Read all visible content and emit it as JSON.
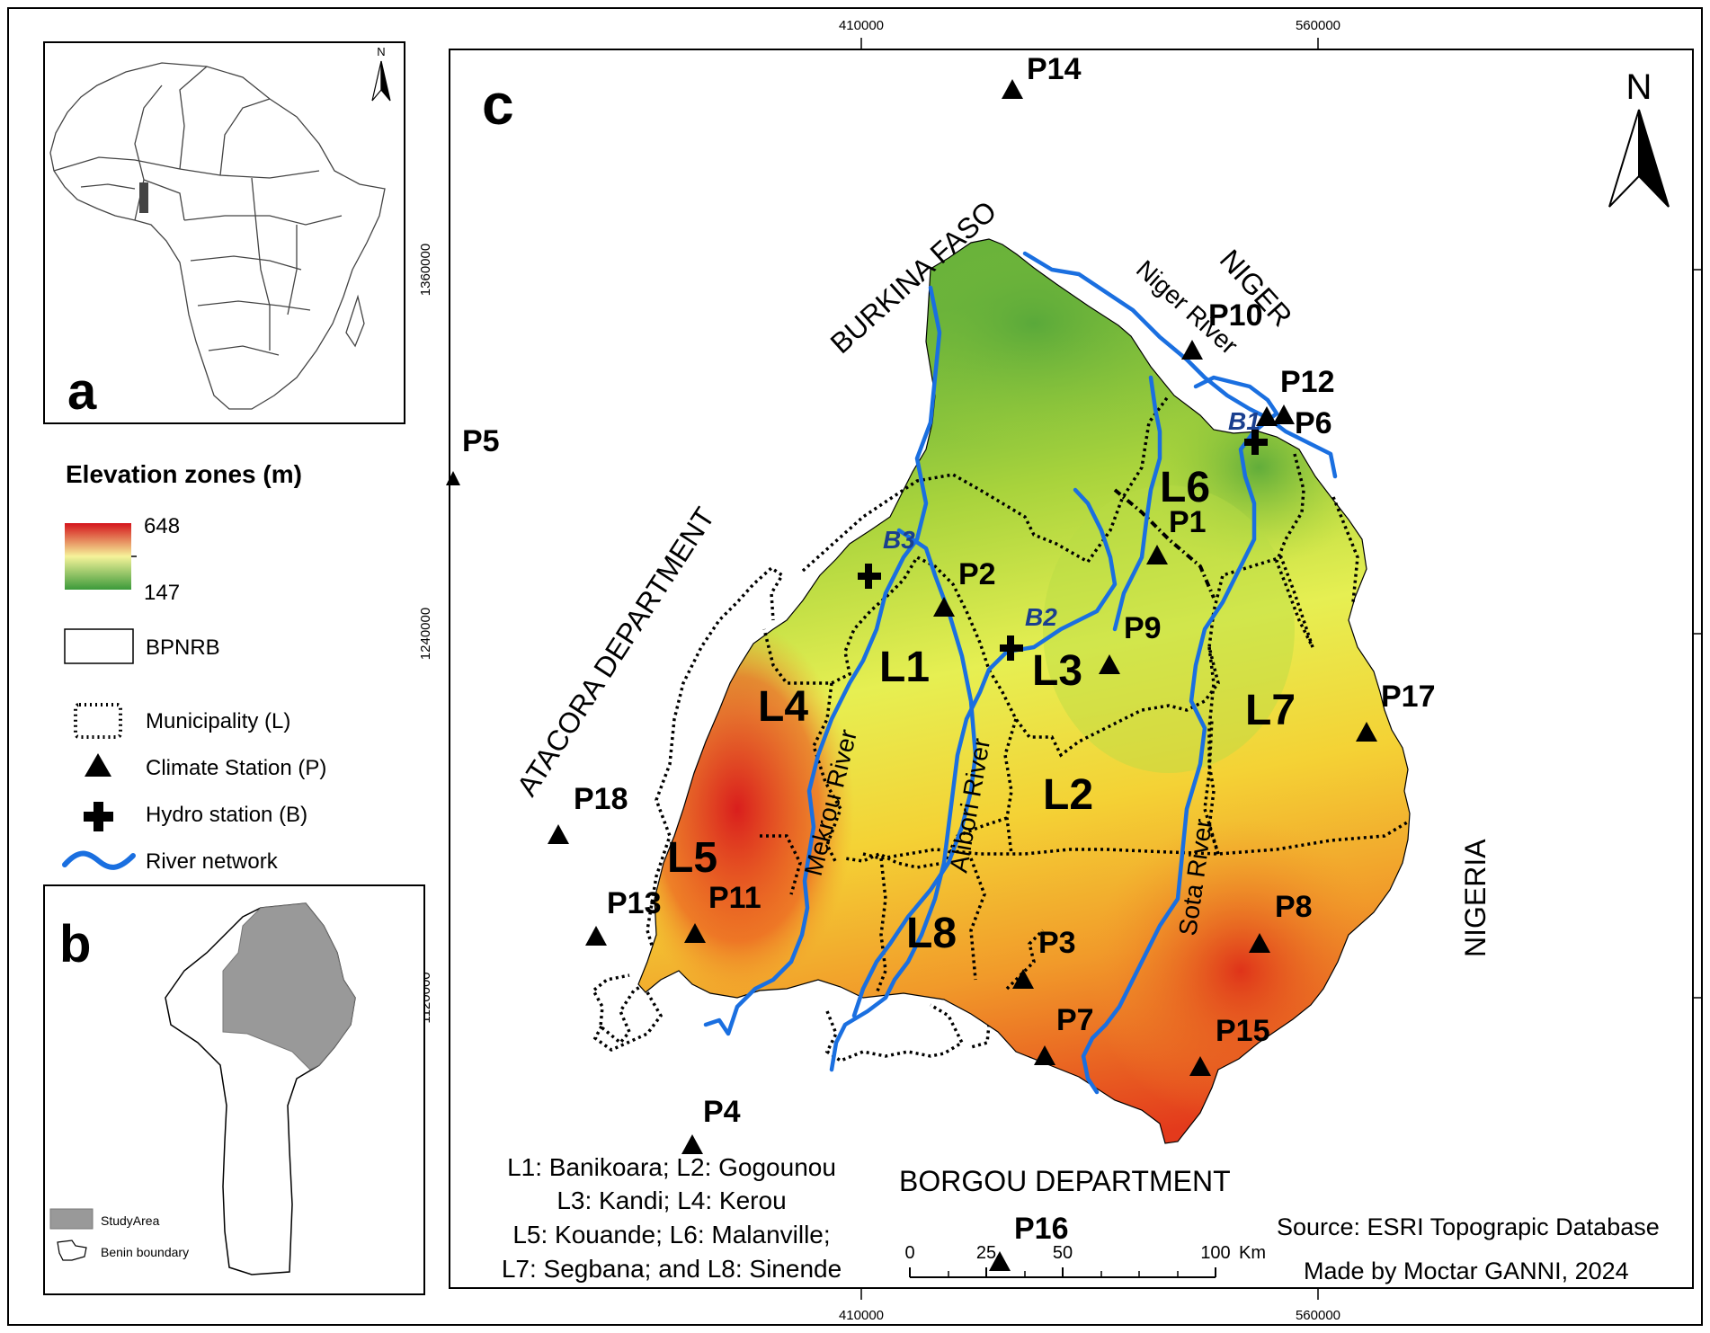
{
  "panels": {
    "a": "a",
    "b": "b",
    "c": "c"
  },
  "north": "N",
  "coords": {
    "x_top": [
      "410000",
      "560000"
    ],
    "x_bottom": [
      "410000",
      "560000"
    ],
    "y_left": [
      "1360000",
      "1240000",
      "1120000"
    ]
  },
  "legend": {
    "title": "Elevation zones (m)",
    "elev_max": "648",
    "elev_min": "147",
    "bpnrb": "BPNRB",
    "municipality": "Municipality (L)",
    "climate_station": "Climate Station (P)",
    "hydro_station": "Hydro station (B)",
    "river_network": "River network",
    "colors": {
      "high": "#d4141b",
      "mid": "#f3f36a",
      "low": "#3c9a3a",
      "river": "#1a6fe0"
    }
  },
  "inset_b": {
    "study_area": "StudyArea",
    "benin_boundary": "Benin boundary"
  },
  "countries": {
    "burkina": "BURKINA FASO",
    "niger": "NIGER",
    "nigeria": "NIGERIA",
    "atacora": "ATACORA DEPARTMENT",
    "borgou": "BORGOU DEPARTMENT"
  },
  "rivers": {
    "niger": "Niger River",
    "mekrou": "Mekrou River",
    "alibori": "Alibori River",
    "sota": "Sota River"
  },
  "zones": [
    "L1",
    "L2",
    "L3",
    "L4",
    "L5",
    "L6",
    "L7",
    "L8"
  ],
  "stations": [
    "P1",
    "P2",
    "P3",
    "P4",
    "P5",
    "P6",
    "P7",
    "P8",
    "P9",
    "P10",
    "P11",
    "P12",
    "P13",
    "P14",
    "P15",
    "P16",
    "P17",
    "P18"
  ],
  "hydro": [
    "B1",
    "B2",
    "B3"
  ],
  "key_lines": [
    "L1: Banikoara; L2: Gogounou",
    "L3: Kandi; L4: Kerou",
    "L5: Kouande; L6: Malanville;",
    "L7: Segbana; and L8: Sinende"
  ],
  "scale": {
    "ticks": [
      "0",
      "25",
      "50",
      "100"
    ],
    "unit": "Km"
  },
  "source": "Source: ESRI Topograpic Database",
  "credit": "Made by Moctar GANNI, 2024"
}
